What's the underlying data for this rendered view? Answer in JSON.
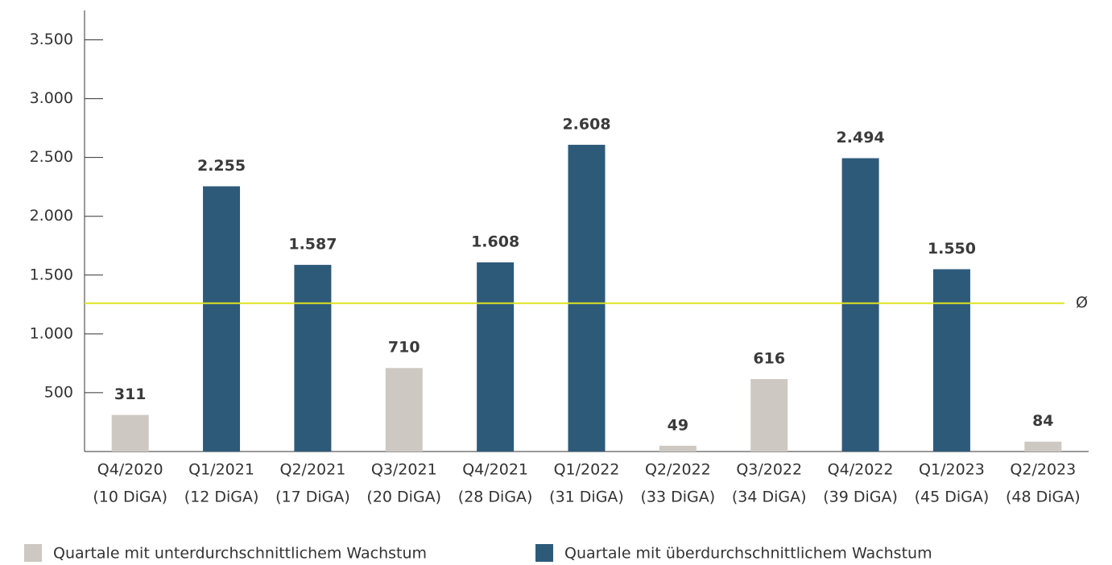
{
  "chart_data": {
    "type": "bar",
    "categories": [
      [
        "Q4/2020",
        "(10 DiGA)"
      ],
      [
        "Q1/2021",
        "(12 DiGA)"
      ],
      [
        "Q2/2021",
        "(17 DiGA)"
      ],
      [
        "Q3/2021",
        "(20 DiGA)"
      ],
      [
        "Q4/2021",
        "(28 DiGA)"
      ],
      [
        "Q1/2022",
        "(31 DiGA)"
      ],
      [
        "Q2/2022",
        "(33 DiGA)"
      ],
      [
        "Q3/2022",
        "(34 DiGA)"
      ],
      [
        "Q4/2022",
        "(39 DiGA)"
      ],
      [
        "Q1/2023",
        "(45 DiGA)"
      ],
      [
        "Q2/2023",
        "(48 DiGA)"
      ]
    ],
    "series": [
      {
        "name": "Quartale mit unterdurchschnittlichem Wachstum",
        "color": "#cdc8c2",
        "values": [
          311,
          null,
          null,
          710,
          null,
          null,
          49,
          616,
          null,
          null,
          84
        ],
        "value_labels": [
          "311",
          null,
          null,
          "710",
          null,
          null,
          "49",
          "616",
          null,
          null,
          "84"
        ]
      },
      {
        "name": "Quartale mit überdurchschnittlichem Wachstum",
        "color": "#2e5a7a",
        "values": [
          null,
          2255,
          1587,
          null,
          1608,
          2608,
          null,
          null,
          2494,
          1550,
          null
        ],
        "value_labels": [
          null,
          "2.255",
          "1.587",
          null,
          "1.608",
          "2.608",
          null,
          null,
          "2.494",
          "1.550",
          null
        ]
      }
    ],
    "average": {
      "value": 1261,
      "label": "Ø",
      "color": "#dde31f"
    },
    "ylim": [
      0,
      3750
    ],
    "yticks": [
      {
        "value": 500,
        "label": "500"
      },
      {
        "value": 1000,
        "label": "1.000"
      },
      {
        "value": 1500,
        "label": "1.500"
      },
      {
        "value": 2000,
        "label": "2.000"
      },
      {
        "value": 2500,
        "label": "2.500"
      },
      {
        "value": 3000,
        "label": "3.000"
      },
      {
        "value": 3500,
        "label": "3.500"
      }
    ],
    "legend": "bottom"
  }
}
